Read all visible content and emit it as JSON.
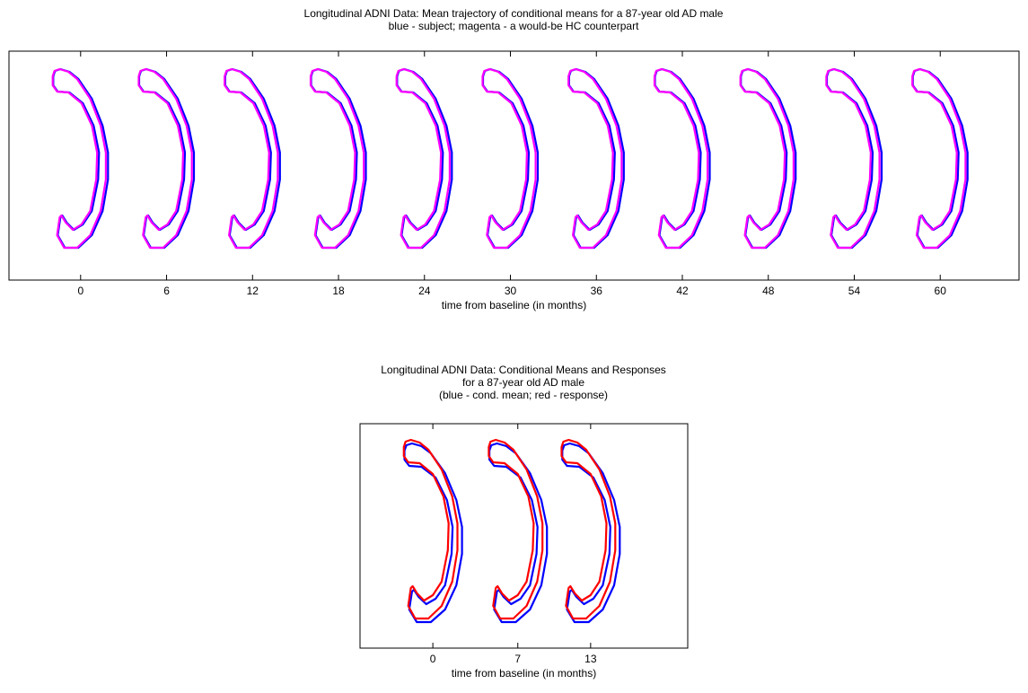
{
  "chart_data": [
    {
      "type": "shape",
      "title": [
        "Longitudinal ADNI Data: Mean trajectory of conditional means for a 87-year old AD male",
        "blue - subject; magenta - a would-be HC counterpart"
      ],
      "x": [
        0,
        6,
        12,
        18,
        24,
        30,
        36,
        42,
        48,
        54,
        60
      ],
      "xlim": [
        -5,
        65.5
      ],
      "xticks": [
        0,
        6,
        12,
        18,
        24,
        30,
        36,
        42,
        48,
        54,
        60
      ],
      "xlabel": "time from baseline (in months)",
      "colors": [
        "#0000ff",
        "#ff00ff"
      ]
    },
    {
      "type": "shape",
      "title": [
        "Longitudinal ADNI Data: Conditional Means and Responses",
        "for a 87-year old AD male",
        "(blue - cond. mean; red - response)"
      ],
      "x": [
        0,
        7,
        13
      ],
      "xlim": [
        -6,
        21
      ],
      "xticks": [
        0,
        7,
        13
      ],
      "xlabel": "time from baseline (in months)",
      "colors": [
        "#0000ff",
        "#ff0000"
      ]
    }
  ]
}
